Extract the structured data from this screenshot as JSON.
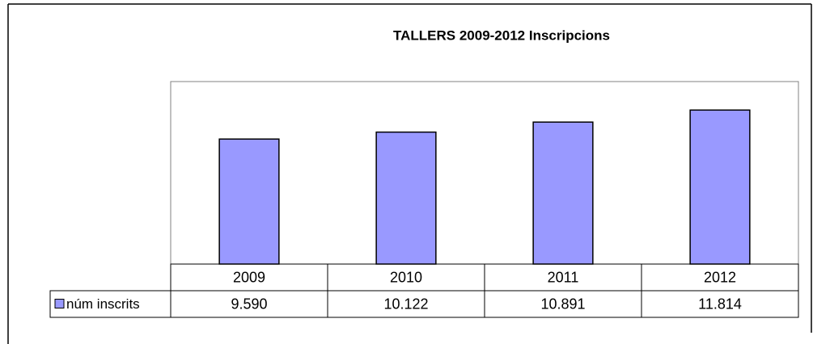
{
  "chart_data": {
    "type": "bar",
    "title": "TALLERS 2009-2012 Inscripcions",
    "categories": [
      "2009",
      "2010",
      "2011",
      "2012"
    ],
    "series": [
      {
        "name": "núm inscrits",
        "color": "#9999ff",
        "values": [
          9590,
          10122,
          10891,
          11814
        ],
        "value_labels": [
          "9.590",
          "10.122",
          "10.891",
          "11.814"
        ]
      }
    ],
    "ylim": [
      0,
      14000
    ]
  }
}
